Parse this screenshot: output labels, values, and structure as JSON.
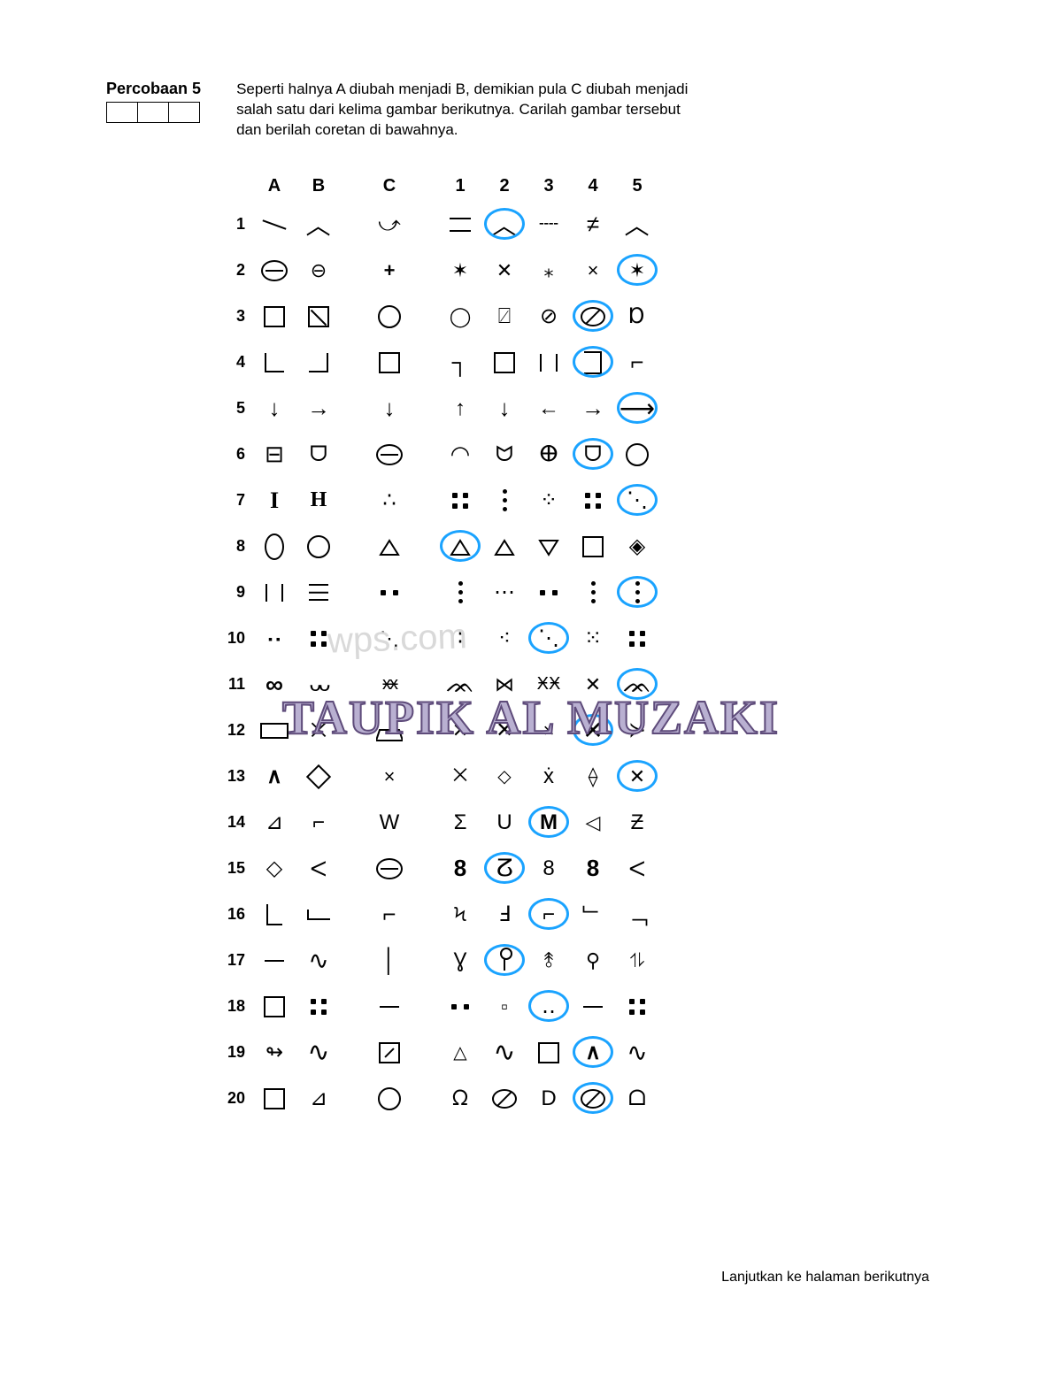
{
  "header": {
    "trial_label": "Percobaan 5",
    "instructions": "Seperti halnya A diubah menjadi B, demikian pula C diubah menjadi salah satu dari kelima gambar berikutnya. Carilah gambar tersebut dan berilah coretan di bawahnya."
  },
  "columns": {
    "examples": [
      "A",
      "B"
    ],
    "prompt": "C",
    "options": [
      "1",
      "2",
      "3",
      "4",
      "5"
    ]
  },
  "watermark_main": "TAUPIK AL MUZAKI",
  "watermark_sub": "wps.com",
  "footer_text": "Lanjutkan ke halaman berikutnya",
  "circle_color": "#1aa3ff",
  "rows": [
    {
      "n": 1,
      "A": "line",
      "B": "angle-lt",
      "C": "line-tick",
      "opts": [
        "dbl",
        "angle-lt",
        "dash-pair",
        "dbl-strike",
        "angle-lt"
      ],
      "circled": 2
    },
    {
      "n": 2,
      "A": "ominus",
      "B": "ominus-arrow",
      "C": "plus",
      "opts": [
        "star",
        "x",
        "star-sm",
        "x-sm",
        "star-arrow"
      ],
      "circled": 5
    },
    {
      "n": 3,
      "A": "sq",
      "B": "sq-slash",
      "C": "circle",
      "opts": [
        "circle-tail",
        "sq-slash-b",
        "circle-slash-b",
        "circle-slash",
        "circle-tail-r"
      ],
      "circled": 4
    },
    {
      "n": 4,
      "A": "hook-lb",
      "B": "hook-rb",
      "C": "sq",
      "opts": [
        "hook-tr",
        "sq",
        "bars2",
        "bracket-r",
        "bracket-tr"
      ],
      "circled": 4
    },
    {
      "n": 5,
      "A": "arr-d",
      "B": "arr-r",
      "C": "arr-d",
      "opts": [
        "arr-u",
        "arr-d",
        "arr-l",
        "arr-r",
        "arr-r-long"
      ],
      "circled": 5
    },
    {
      "n": 6,
      "A": "rect-split",
      "B": "cup-d",
      "C": "ominus",
      "opts": [
        "semi",
        "cup-u",
        "theta",
        "cup-d",
        "circle"
      ],
      "circled": 4
    },
    {
      "n": 7,
      "A": "I",
      "B": "H",
      "C": "tri-dots",
      "opts": [
        "4dot-sq",
        "vdots",
        "4dot-d",
        "4dot-sq2",
        "2dot-diag"
      ],
      "circled": 5
    },
    {
      "n": 8,
      "A": "ellipse",
      "B": "circle",
      "C": "tri",
      "opts": [
        "tri",
        "tri-wide",
        "tri-dn",
        "sq",
        "diamond-wide"
      ],
      "circled": 1
    },
    {
      "n": 9,
      "A": "bars2",
      "B": "bars3",
      "C": "2dots",
      "opts": [
        "vdots",
        "hdots3",
        "2dots",
        "vdots",
        "vdots3"
      ],
      "circled": 5
    },
    {
      "n": 10,
      "A": "2sq-dots",
      "B": "4dots",
      "C": "2dots-diag",
      "opts": [
        "colon",
        "3dots",
        "4dots-d",
        "5dots",
        "4dots-sq"
      ],
      "circled": 3
    },
    {
      "n": 11,
      "A": "infty",
      "B": "uu",
      "C": "xx",
      "opts": [
        "zigzag",
        "x-bar",
        "x-x",
        "x-slash",
        "zigzag"
      ],
      "circled": 5
    },
    {
      "n": 12,
      "A": "rect",
      "B": "x-dot",
      "C": "trapz",
      "opts": [
        "x-slash",
        "X",
        "x-sm",
        "X-big",
        "angle-gt"
      ],
      "circled": 4
    },
    {
      "n": 13,
      "A": "caret",
      "B": "diamond",
      "C": "x-sm",
      "opts": [
        "x-stack",
        "diamond-sm",
        "x-caret",
        "diamond-bar",
        "x-diamond"
      ],
      "circled": 5
    },
    {
      "n": 14,
      "A": "tri-rt",
      "B": "hook-dn",
      "C": "W",
      "opts": [
        "sigma",
        "U",
        "M",
        "tri-tall",
        "Z-rev"
      ],
      "circled": 3
    },
    {
      "n": 15,
      "A": "diamond-open",
      "B": "brace-half",
      "C": "ominus",
      "opts": [
        "8",
        "brace-c",
        "8-open",
        "8",
        "brace-r"
      ],
      "circled": 2
    },
    {
      "n": 16,
      "A": "L",
      "B": "L-flat",
      "C": "hook-long",
      "opts": [
        "hook-s",
        "J",
        "L-round",
        "hook-low",
        "hook-rb-long"
      ],
      "circled": 3
    },
    {
      "n": 17,
      "A": "dash",
      "B": "wave-loop",
      "C": "bar-v",
      "opts": [
        "hourglass",
        "pin",
        "pin-up",
        "flag",
        "flag-dn"
      ],
      "circled": 2
    },
    {
      "n": 18,
      "A": "sq",
      "B": "4dots",
      "C": "dash",
      "opts": [
        "2dots",
        "sq-sm",
        "2dots-wide",
        "dash",
        "4dots"
      ],
      "circled": 3
    },
    {
      "n": 19,
      "A": "loop-r",
      "B": "tilde",
      "C": "sq-diag",
      "opts": [
        "tri-sm",
        "tilde",
        "sq",
        "caret",
        "wave-loop"
      ],
      "circled": 4
    },
    {
      "n": 20,
      "A": "sq",
      "B": "tri-rt",
      "C": "circle",
      "opts": [
        "blob",
        "circle-slash",
        "D",
        "oval-slash",
        "cup-flat"
      ],
      "circled": 4
    }
  ]
}
